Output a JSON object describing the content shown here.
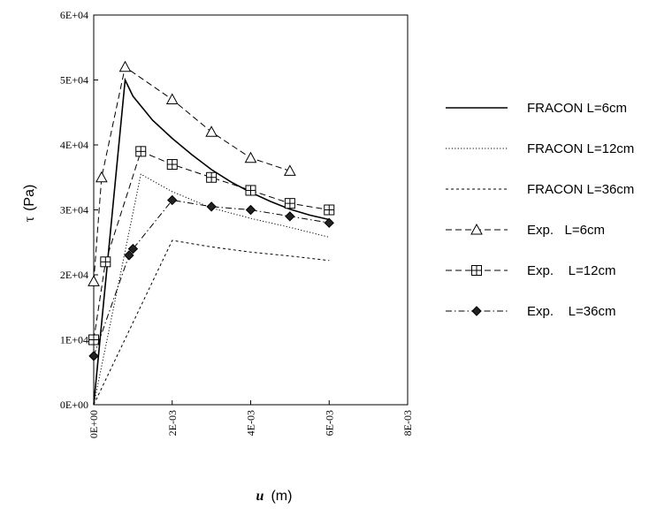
{
  "chart_data": {
    "type": "line",
    "xlabel_symbol": "u",
    "xlabel_unit": "(m)",
    "ylabel_symbol": "τ",
    "ylabel_unit": "(Pa)",
    "xlim": [
      0,
      0.008
    ],
    "ylim": [
      0,
      60000
    ],
    "x_ticks": [
      0,
      0.002,
      0.004,
      0.006,
      0.008
    ],
    "x_tick_labels": [
      "0E+00",
      "2E-03",
      "4E-03",
      "6E-03",
      "8E-03"
    ],
    "y_ticks": [
      0,
      10000,
      20000,
      30000,
      40000,
      50000,
      60000
    ],
    "y_tick_labels": [
      "0E+00",
      "1E+04",
      "2E+04",
      "3E+04",
      "4E+04",
      "5E+04",
      "6E+04"
    ],
    "grid": false,
    "legend_position": "right",
    "series": [
      {
        "name": "FRACON L=6cm",
        "line_style": "solid",
        "marker": "none",
        "points": [
          [
            0,
            0
          ],
          [
            0.0008,
            50000
          ],
          [
            0.001,
            47500
          ],
          [
            0.0015,
            43800
          ],
          [
            0.002,
            41000
          ],
          [
            0.0025,
            38500
          ],
          [
            0.003,
            36200
          ],
          [
            0.0035,
            34300
          ],
          [
            0.004,
            32700
          ],
          [
            0.0045,
            31300
          ],
          [
            0.005,
            30100
          ],
          [
            0.0055,
            29200
          ],
          [
            0.006,
            28500
          ]
        ]
      },
      {
        "name": "FRACON L=12cm",
        "line_style": "dotted",
        "marker": "none",
        "points": [
          [
            0,
            0
          ],
          [
            0.0012,
            35500
          ],
          [
            0.002,
            32800
          ],
          [
            0.003,
            30300
          ],
          [
            0.004,
            28700
          ],
          [
            0.005,
            27300
          ],
          [
            0.006,
            25800
          ]
        ]
      },
      {
        "name": "FRACON L=36cm",
        "line_style": "dashed-short",
        "marker": "none",
        "points": [
          [
            0,
            0
          ],
          [
            0.002,
            25300
          ],
          [
            0.003,
            24300
          ],
          [
            0.004,
            23500
          ],
          [
            0.005,
            22900
          ],
          [
            0.006,
            22200
          ]
        ]
      },
      {
        "name": "Exp.   L=6cm",
        "line_style": "dashed",
        "marker": "triangle",
        "points": [
          [
            0,
            19000
          ],
          [
            0.0002,
            35000
          ],
          [
            0.0008,
            52000
          ],
          [
            0.002,
            47000
          ],
          [
            0.003,
            42000
          ],
          [
            0.004,
            38000
          ],
          [
            0.005,
            36000
          ]
        ]
      },
      {
        "name": "Exp.    L=12cm",
        "line_style": "dashed",
        "marker": "square-plus",
        "points": [
          [
            0,
            10000
          ],
          [
            0.0003,
            22000
          ],
          [
            0.0012,
            39000
          ],
          [
            0.002,
            37000
          ],
          [
            0.003,
            35000
          ],
          [
            0.004,
            33000
          ],
          [
            0.005,
            31000
          ],
          [
            0.006,
            30000
          ]
        ]
      },
      {
        "name": "Exp.    L=36cm",
        "line_style": "dash-dot",
        "marker": "diamond",
        "points": [
          [
            0,
            7500
          ],
          [
            0.0009,
            23000
          ],
          [
            0.001,
            24000
          ],
          [
            0.002,
            31500
          ],
          [
            0.003,
            30500
          ],
          [
            0.004,
            30000
          ],
          [
            0.005,
            29000
          ],
          [
            0.006,
            28000
          ]
        ]
      }
    ]
  }
}
